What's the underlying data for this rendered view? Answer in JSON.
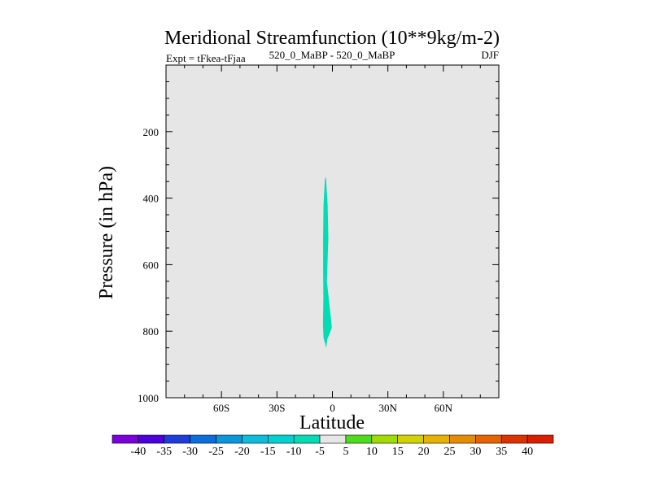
{
  "chart_data": {
    "type": "heatmap",
    "title": "Meridional Streamfunction (10**9kg/m-2)",
    "subtitle_left": "Expt = tFkea-tFjaa",
    "subtitle_center": "520_0_MaBP - 520_0_MaBP",
    "subtitle_right": "DJF",
    "xlabel": "Latitude",
    "ylabel": "Pressure (in hPa)",
    "xlim": [
      -90,
      90
    ],
    "ylim": [
      0,
      1000
    ],
    "y_inverted": true,
    "xticks": [
      -60,
      -30,
      0,
      30,
      60
    ],
    "xtick_labels": [
      "60S",
      "30S",
      "0",
      "30N",
      "60N"
    ],
    "yticks": [
      200,
      400,
      600,
      800,
      1000
    ],
    "ytick_labels": [
      "200",
      "400",
      "600",
      "800",
      "1000"
    ],
    "background_value_range": "-5 to 5",
    "background_color": "#e6e6e6",
    "contour_regions": [
      {
        "level_range": [
          -10,
          -5
        ],
        "color": "#00dcb4",
        "outline": [
          [
            -3.5,
            335
          ],
          [
            -2.6,
            420
          ],
          [
            -2.2,
            520
          ],
          [
            -3.0,
            650
          ],
          [
            -1.4,
            730
          ],
          [
            -0.3,
            790
          ],
          [
            -2.8,
            825
          ],
          [
            -3.3,
            850
          ],
          [
            -4.8,
            820
          ],
          [
            -5.1,
            780
          ],
          [
            -4.9,
            700
          ],
          [
            -5.0,
            620
          ],
          [
            -5.0,
            520
          ],
          [
            -4.8,
            420
          ],
          [
            -4.1,
            345
          ]
        ]
      }
    ],
    "colorbar": {
      "labels": [
        "-40",
        "-35",
        "-30",
        "-25",
        "-20",
        "-15",
        "-10",
        "-5",
        "5",
        "10",
        "15",
        "20",
        "25",
        "30",
        "35",
        "40"
      ],
      "colors": [
        "#7a00dc",
        "#4b00dc",
        "#1e3cdc",
        "#0a6edc",
        "#0a96dc",
        "#0abedc",
        "#00d2d2",
        "#00dcb4",
        "#e6e6e6",
        "#50dc1e",
        "#a0dc00",
        "#d2d200",
        "#e6b400",
        "#e68c00",
        "#e66400",
        "#dc3200",
        "#dc1e00"
      ]
    }
  }
}
